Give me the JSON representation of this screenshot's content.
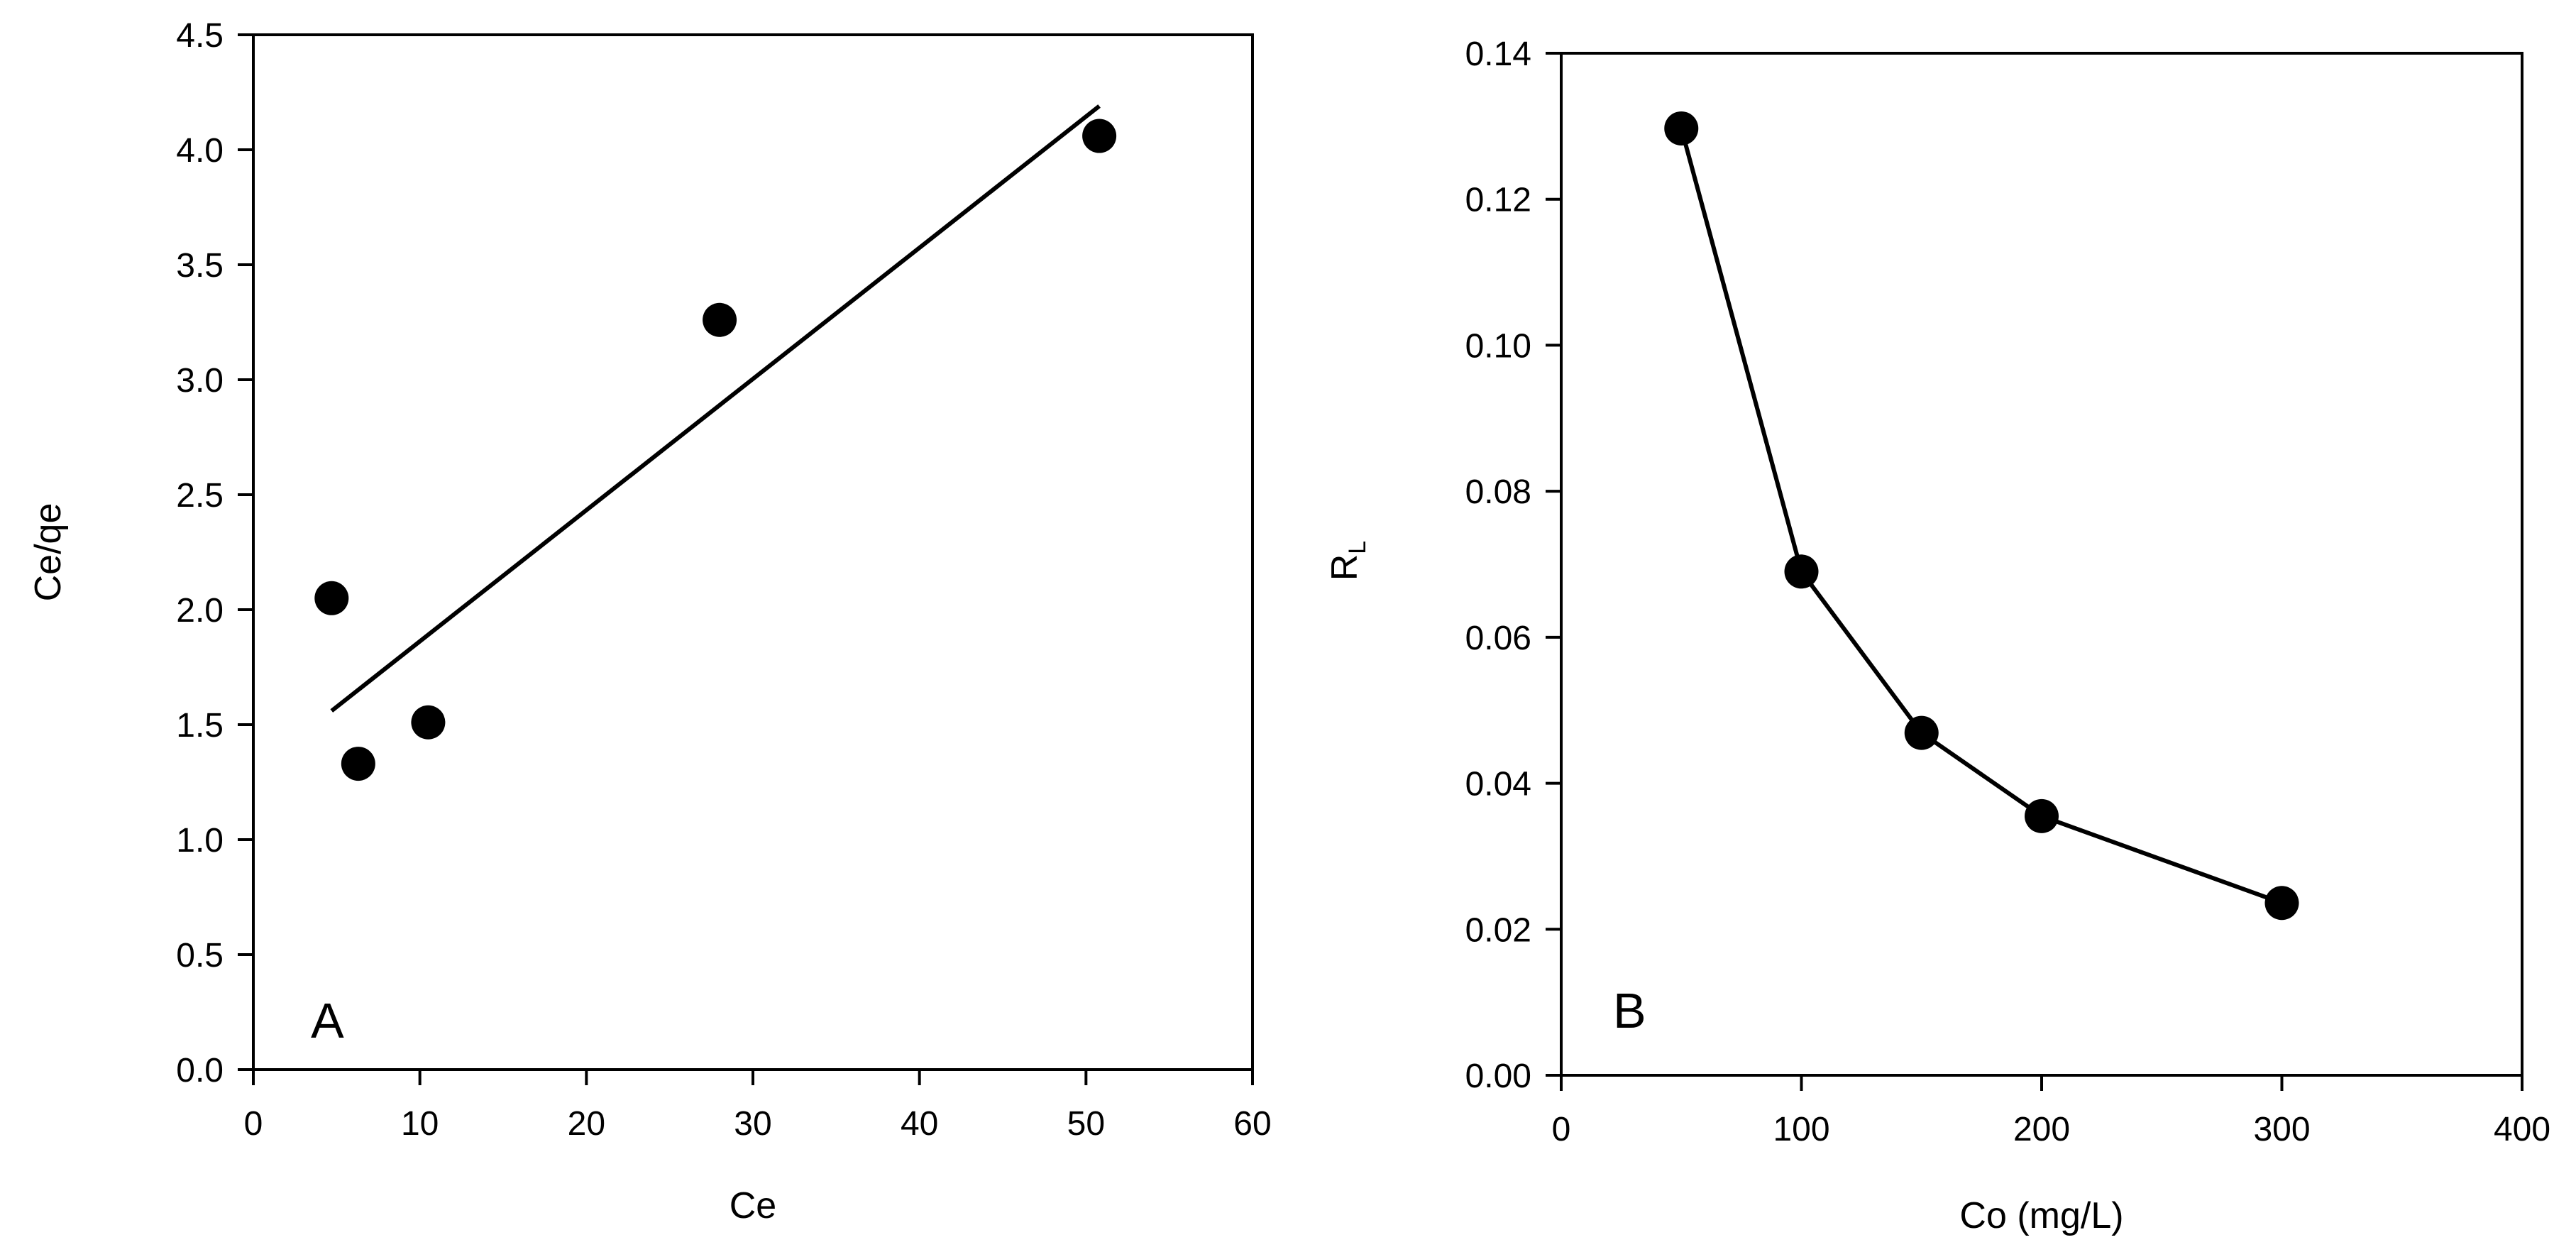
{
  "chart_data": [
    {
      "type": "scatter",
      "panel_label": "A",
      "xlabel": "Ce",
      "ylabel": "Ce/qe",
      "xlim": [
        0,
        60
      ],
      "ylim": [
        0,
        4.5
      ],
      "xticks": [
        "0",
        "10",
        "20",
        "30",
        "40",
        "50",
        "60"
      ],
      "yticks": [
        "0.0",
        "0.5",
        "1.0",
        "1.5",
        "2.0",
        "2.5",
        "3.0",
        "3.5",
        "4.0",
        "4.5"
      ],
      "points": [
        {
          "x": 4.7,
          "y": 2.05
        },
        {
          "x": 6.3,
          "y": 1.33
        },
        {
          "x": 10.5,
          "y": 1.51
        },
        {
          "x": 28.0,
          "y": 3.26
        },
        {
          "x": 50.8,
          "y": 4.06
        }
      ],
      "trendline": {
        "x1": 4.7,
        "y1": 1.56,
        "x2": 50.8,
        "y2": 4.19
      },
      "grid": false,
      "legend": "none"
    },
    {
      "type": "line",
      "panel_label": "B",
      "xlabel": "Co (mg/L)",
      "ylabel_main": "R",
      "ylabel_sub": "L",
      "xlim": [
        0,
        400
      ],
      "ylim": [
        0,
        0.14
      ],
      "xticks": [
        "0",
        "100",
        "200",
        "300",
        "400"
      ],
      "yticks": [
        "0.00",
        "0.02",
        "0.04",
        "0.06",
        "0.08",
        "0.10",
        "0.12",
        "0.14"
      ],
      "points": [
        {
          "x": 50,
          "y": 0.1297
        },
        {
          "x": 100,
          "y": 0.069
        },
        {
          "x": 150,
          "y": 0.0469
        },
        {
          "x": 200,
          "y": 0.0355
        },
        {
          "x": 300,
          "y": 0.0236
        }
      ],
      "grid": false,
      "legend": "none"
    }
  ]
}
